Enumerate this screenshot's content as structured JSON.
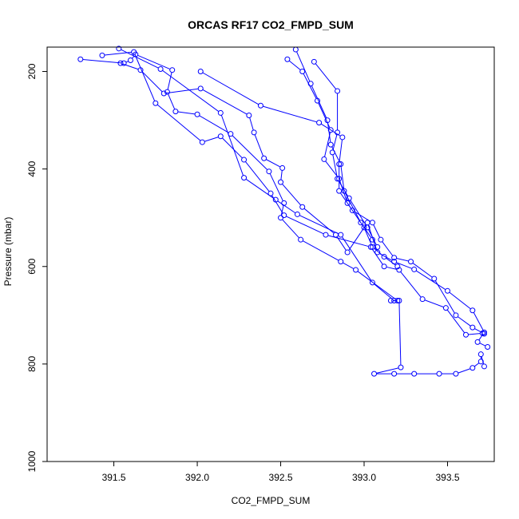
{
  "chart_data": {
    "type": "scatter",
    "title": "ORCAS RF17 CO2_FMPD_SUM",
    "xlabel": "CO2_FMPD_SUM",
    "ylabel": "Pressure (mbar)",
    "xlim": [
      391.1,
      393.78
    ],
    "ylim": [
      1000,
      150
    ],
    "y_reversed": true,
    "x_ticks": [
      "391.5",
      "392.0",
      "392.5",
      "393.0",
      "393.5"
    ],
    "x_tick_values": [
      391.5,
      392.0,
      392.5,
      393.0,
      393.5
    ],
    "y_ticks": [
      "200",
      "400",
      "600",
      "800",
      "1000"
    ],
    "y_tick_values": [
      200,
      400,
      600,
      800,
      1000
    ],
    "grid": false,
    "legend": "none",
    "colors": {
      "series": "#0000ff",
      "axes": "#000000",
      "background": "#ffffff"
    },
    "series": [
      {
        "points": [
          [
            391.3,
            175
          ],
          [
            391.56,
            183
          ],
          [
            391.6,
            177
          ],
          [
            391.63,
            165
          ],
          [
            391.85,
            197
          ],
          [
            391.82,
            242
          ],
          [
            391.87,
            282
          ],
          [
            392.0,
            288
          ],
          [
            392.2,
            328
          ],
          [
            392.43,
            405
          ],
          [
            392.52,
            470
          ],
          [
            392.5,
            500
          ],
          [
            392.62,
            545
          ],
          [
            392.86,
            590
          ],
          [
            392.95,
            607
          ],
          [
            393.2,
            670
          ],
          [
            393.16,
            670
          ],
          [
            393.21,
            670
          ],
          [
            393.22,
            807
          ],
          [
            393.06,
            820
          ],
          [
            393.18,
            820
          ],
          [
            393.3,
            820
          ],
          [
            393.45,
            820
          ],
          [
            393.55,
            820
          ],
          [
            393.65,
            808
          ],
          [
            393.7,
            795
          ],
          [
            393.7,
            780
          ],
          [
            393.72,
            805
          ]
        ]
      },
      {
        "points": [
          [
            391.54,
            183
          ],
          [
            391.66,
            197
          ],
          [
            391.8,
            245
          ],
          [
            392.02,
            235
          ],
          [
            392.31,
            290
          ],
          [
            392.34,
            325
          ],
          [
            392.4,
            378
          ],
          [
            392.51,
            398
          ],
          [
            392.5,
            427
          ],
          [
            392.63,
            478
          ],
          [
            392.83,
            535
          ],
          [
            392.9,
            571
          ],
          [
            393.02,
            510
          ],
          [
            393.08,
            571
          ],
          [
            393.18,
            590
          ],
          [
            393.3,
            606
          ],
          [
            393.5,
            650
          ],
          [
            393.65,
            690
          ],
          [
            393.72,
            735
          ],
          [
            393.68,
            755
          ],
          [
            393.74,
            765
          ]
        ]
      },
      {
        "points": [
          [
            391.43,
            167
          ],
          [
            391.62,
            160
          ],
          [
            391.75,
            265
          ],
          [
            392.03,
            345
          ],
          [
            392.14,
            333
          ],
          [
            392.28,
            381
          ],
          [
            392.44,
            450
          ],
          [
            392.52,
            495
          ],
          [
            392.77,
            535
          ],
          [
            393.04,
            560
          ],
          [
            393.12,
            600
          ],
          [
            393.21,
            607
          ],
          [
            393.35,
            667
          ],
          [
            393.49,
            685
          ],
          [
            393.61,
            740
          ],
          [
            393.71,
            737
          ]
        ]
      },
      {
        "points": [
          [
            391.53,
            153
          ],
          [
            391.78,
            195
          ],
          [
            392.14,
            285
          ],
          [
            392.28,
            418
          ],
          [
            392.47,
            463
          ],
          [
            392.6,
            493
          ],
          [
            392.86,
            535
          ],
          [
            393.05,
            633
          ],
          [
            393.18,
            670
          ]
        ]
      },
      {
        "points": [
          [
            392.02,
            200
          ],
          [
            392.38,
            270
          ],
          [
            392.73,
            305
          ],
          [
            392.87,
            335
          ],
          [
            392.85,
            390
          ],
          [
            392.85,
            445
          ],
          [
            392.93,
            485
          ],
          [
            393.05,
            510
          ],
          [
            393.1,
            545
          ],
          [
            393.18,
            582
          ],
          [
            393.28,
            590
          ],
          [
            393.42,
            625
          ],
          [
            393.55,
            700
          ],
          [
            393.65,
            725
          ],
          [
            393.72,
            738
          ]
        ]
      },
      {
        "points": [
          [
            392.54,
            175
          ],
          [
            392.63,
            200
          ],
          [
            392.72,
            260
          ],
          [
            392.8,
            320
          ],
          [
            392.76,
            380
          ],
          [
            392.85,
            420
          ],
          [
            392.9,
            470
          ],
          [
            393.0,
            520
          ],
          [
            393.05,
            560
          ],
          [
            393.12,
            580
          ],
          [
            393.2,
            600
          ]
        ]
      },
      {
        "points": [
          [
            392.59,
            155
          ],
          [
            392.68,
            225
          ],
          [
            392.78,
            300
          ],
          [
            392.8,
            350
          ],
          [
            392.86,
            390
          ],
          [
            392.88,
            445
          ],
          [
            392.98,
            510
          ],
          [
            393.05,
            545
          ]
        ]
      },
      {
        "points": [
          [
            392.7,
            180
          ],
          [
            392.84,
            240
          ],
          [
            392.84,
            325
          ],
          [
            392.81,
            366
          ],
          [
            392.84,
            420
          ],
          [
            392.91,
            460
          ],
          [
            393.02,
            520
          ],
          [
            393.08,
            560
          ]
        ]
      }
    ]
  }
}
